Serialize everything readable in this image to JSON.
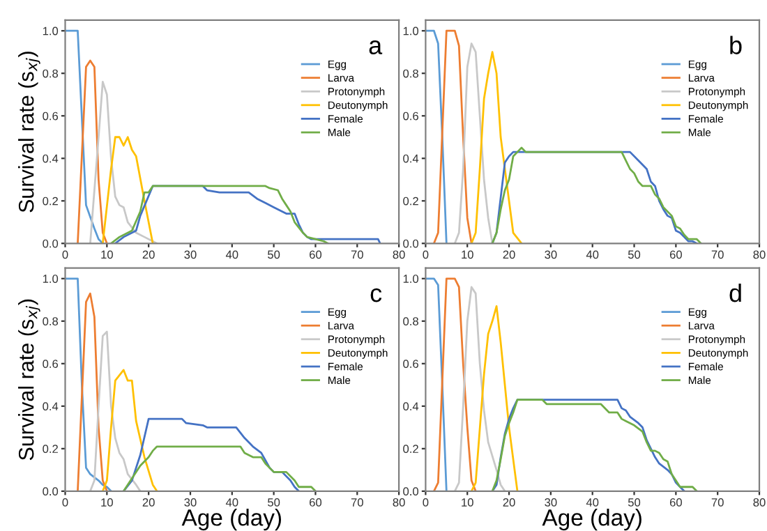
{
  "chart_data": [
    {
      "type": "line",
      "annotations": [
        "a"
      ],
      "ylabel": "Survival rate (s$_{xj}$)",
      "legend": "top right",
      "xlim": [
        0,
        80
      ],
      "ylim": [
        0,
        1.05
      ],
      "xticks": [
        0,
        10,
        20,
        30,
        40,
        50,
        60,
        70,
        80
      ],
      "yticks": [
        {
          "value": 0,
          "label": "0.0"
        },
        {
          "value": 0.2,
          "label": "0.2"
        },
        {
          "value": 0.4,
          "label": "0.4"
        },
        {
          "value": 0.6,
          "label": "0.6"
        },
        {
          "value": 0.8,
          "label": "0.8"
        },
        {
          "value": 1,
          "label": "1.0"
        }
      ],
      "series": [
        {
          "name": "Egg",
          "color": "#5b9bd5",
          "x": [
            0,
            3,
            5,
            7,
            8,
            9
          ],
          "values": [
            1,
            1,
            0.18,
            0.07,
            0.02,
            0
          ]
        },
        {
          "name": "Larva",
          "color": "#ed7d31",
          "x": [
            3,
            5,
            6,
            7,
            8,
            9,
            10
          ],
          "values": [
            0,
            0.83,
            0.86,
            0.83,
            0.3,
            0.05,
            0
          ]
        },
        {
          "name": "Protonymph",
          "color": "#c8c8c8",
          "x": [
            6,
            8,
            9,
            10,
            11,
            12,
            13,
            14,
            15,
            17,
            19,
            21,
            22
          ],
          "values": [
            0,
            0.5,
            0.76,
            0.7,
            0.4,
            0.22,
            0.18,
            0.17,
            0.1,
            0.05,
            0.03,
            0.01,
            0
          ]
        },
        {
          "name": "Deutonymph",
          "color": "#ffc000",
          "x": [
            9,
            11,
            12,
            13,
            14,
            15,
            16,
            17,
            19,
            20,
            21
          ],
          "values": [
            0,
            0.35,
            0.5,
            0.5,
            0.46,
            0.5,
            0.44,
            0.41,
            0.2,
            0.1,
            0
          ]
        },
        {
          "name": "Female",
          "color": "#4472c4",
          "x": [
            12,
            14,
            16,
            17,
            18,
            21,
            33,
            34,
            37,
            44,
            46,
            48,
            50,
            52,
            53,
            55,
            56,
            57,
            58,
            59,
            75,
            75.5
          ],
          "values": [
            0,
            0.03,
            0.05,
            0.06,
            0.13,
            0.27,
            0.27,
            0.25,
            0.24,
            0.24,
            0.21,
            0.19,
            0.17,
            0.15,
            0.14,
            0.14,
            0.09,
            0.05,
            0.03,
            0.02,
            0.02,
            0
          ]
        },
        {
          "name": "Male",
          "color": "#70ad47",
          "x": [
            11,
            13,
            16,
            18,
            19,
            20,
            21,
            48,
            49,
            51,
            52,
            53,
            54,
            55,
            57,
            58,
            60,
            62,
            63
          ],
          "values": [
            0,
            0.03,
            0.06,
            0.15,
            0.24,
            0.24,
            0.27,
            0.27,
            0.26,
            0.25,
            0.21,
            0.18,
            0.15,
            0.1,
            0.05,
            0.03,
            0.02,
            0.01,
            0
          ]
        }
      ]
    },
    {
      "type": "line",
      "annotations": [
        "b"
      ],
      "legend": "top right",
      "xlim": [
        0,
        80
      ],
      "ylim": [
        0,
        1.05
      ],
      "xticks": [
        0,
        10,
        20,
        30,
        40,
        50,
        60,
        70,
        80
      ],
      "yticks": [
        {
          "value": 0,
          "label": "0.0"
        },
        {
          "value": 0.2,
          "label": "0.2"
        },
        {
          "value": 0.4,
          "label": "0.4"
        },
        {
          "value": 0.6,
          "label": "0.6"
        },
        {
          "value": 0.8,
          "label": "0.8"
        },
        {
          "value": 1,
          "label": "1.0"
        }
      ],
      "series": [
        {
          "name": "Egg",
          "color": "#5b9bd5",
          "x": [
            0,
            2,
            3,
            4,
            5
          ],
          "values": [
            1,
            1,
            0.94,
            0.5,
            0
          ]
        },
        {
          "name": "Larva",
          "color": "#ed7d31",
          "x": [
            2,
            3,
            5,
            7,
            8,
            9,
            10,
            11
          ],
          "values": [
            0,
            0.05,
            1,
            1,
            0.93,
            0.5,
            0.12,
            0
          ]
        },
        {
          "name": "Protonymph",
          "color": "#c8c8c8",
          "x": [
            7,
            8,
            9,
            10,
            11,
            12,
            13,
            14,
            15,
            16
          ],
          "values": [
            0,
            0.05,
            0.35,
            0.83,
            0.94,
            0.9,
            0.6,
            0.3,
            0.12,
            0
          ]
        },
        {
          "name": "Deutonymph",
          "color": "#ffc000",
          "x": [
            11,
            12,
            13,
            14,
            15,
            16,
            17,
            18,
            20,
            21,
            23
          ],
          "values": [
            0,
            0.05,
            0.35,
            0.68,
            0.8,
            0.9,
            0.8,
            0.5,
            0.2,
            0.05,
            0
          ]
        },
        {
          "name": "Female",
          "color": "#4472c4",
          "x": [
            16,
            17,
            19,
            20,
            21,
            49,
            51,
            53,
            54,
            55,
            56,
            57,
            58,
            59,
            60,
            61,
            62,
            63,
            64,
            65
          ],
          "values": [
            0,
            0.05,
            0.38,
            0.41,
            0.43,
            0.43,
            0.39,
            0.35,
            0.29,
            0.27,
            0.2,
            0.16,
            0.13,
            0.12,
            0.06,
            0.05,
            0.03,
            0.01,
            0.01,
            0
          ]
        },
        {
          "name": "Male",
          "color": "#70ad47",
          "x": [
            16,
            17,
            18,
            19,
            20,
            21,
            22,
            23,
            24,
            47,
            48,
            49,
            50,
            51,
            52,
            54,
            55,
            56,
            57,
            59,
            60,
            61,
            62,
            63,
            65,
            66
          ],
          "values": [
            0,
            0.05,
            0.16,
            0.25,
            0.3,
            0.41,
            0.43,
            0.45,
            0.43,
            0.43,
            0.39,
            0.35,
            0.33,
            0.29,
            0.27,
            0.27,
            0.23,
            0.21,
            0.17,
            0.13,
            0.08,
            0.07,
            0.04,
            0.02,
            0.02,
            0
          ]
        }
      ]
    },
    {
      "type": "line",
      "annotations": [
        "c"
      ],
      "ylabel": "Survival rate (s$_{xj}$)",
      "xlabel": "Age (day)",
      "legend": "top right",
      "xlim": [
        0,
        80
      ],
      "ylim": [
        0,
        1.05
      ],
      "xticks": [
        0,
        10,
        20,
        30,
        40,
        50,
        60,
        70,
        80
      ],
      "yticks": [
        {
          "value": 0,
          "label": "0.0"
        },
        {
          "value": 0.2,
          "label": "0.2"
        },
        {
          "value": 0.4,
          "label": "0.4"
        },
        {
          "value": 0.6,
          "label": "0.6"
        },
        {
          "value": 0.8,
          "label": "0.8"
        },
        {
          "value": 1,
          "label": "1.0"
        }
      ],
      "series": [
        {
          "name": "Egg",
          "color": "#5b9bd5",
          "x": [
            0,
            3,
            4,
            5,
            6,
            8,
            9,
            10,
            11
          ],
          "values": [
            1,
            1,
            0.5,
            0.11,
            0.08,
            0.05,
            0.03,
            0.02,
            0
          ]
        },
        {
          "name": "Larva",
          "color": "#ed7d31",
          "x": [
            3,
            5,
            6,
            7,
            8,
            9,
            10
          ],
          "values": [
            0,
            0.89,
            0.93,
            0.82,
            0.3,
            0.05,
            0
          ]
        },
        {
          "name": "Protonymph",
          "color": "#c8c8c8",
          "x": [
            6,
            7,
            8,
            9,
            10,
            11,
            12,
            13,
            14,
            15,
            17,
            18
          ],
          "values": [
            0,
            0.05,
            0.4,
            0.73,
            0.75,
            0.4,
            0.25,
            0.18,
            0.15,
            0.08,
            0.03,
            0
          ]
        },
        {
          "name": "Deutonymph",
          "color": "#ffc000",
          "x": [
            9,
            10,
            11,
            12,
            14,
            15,
            16,
            17,
            19,
            21,
            22
          ],
          "values": [
            0,
            0.05,
            0.3,
            0.52,
            0.57,
            0.52,
            0.52,
            0.33,
            0.16,
            0.03,
            0
          ]
        },
        {
          "name": "Female",
          "color": "#4472c4",
          "x": [
            14,
            16,
            18,
            20,
            28,
            29,
            33,
            34,
            41,
            43,
            45,
            47,
            49,
            50,
            52,
            54,
            55,
            56
          ],
          "values": [
            0,
            0.05,
            0.17,
            0.34,
            0.34,
            0.32,
            0.31,
            0.3,
            0.3,
            0.25,
            0.21,
            0.18,
            0.11,
            0.09,
            0.09,
            0.05,
            0.02,
            0
          ]
        },
        {
          "name": "Male",
          "color": "#70ad47",
          "x": [
            14,
            16,
            18,
            20,
            21,
            22,
            42,
            43,
            45,
            47,
            48,
            50,
            53,
            55,
            56,
            59,
            60
          ],
          "values": [
            0,
            0.06,
            0.12,
            0.16,
            0.19,
            0.21,
            0.21,
            0.18,
            0.16,
            0.16,
            0.13,
            0.09,
            0.09,
            0.05,
            0.02,
            0.02,
            0
          ]
        }
      ]
    },
    {
      "type": "line",
      "annotations": [
        "d"
      ],
      "xlabel": "Age (day)",
      "legend": "top right",
      "xlim": [
        0,
        80
      ],
      "ylim": [
        0,
        1.05
      ],
      "xticks": [
        0,
        10,
        20,
        30,
        40,
        50,
        60,
        70,
        80
      ],
      "yticks": [
        {
          "value": 0,
          "label": "0.0"
        },
        {
          "value": 0.2,
          "label": "0.2"
        },
        {
          "value": 0.4,
          "label": "0.4"
        },
        {
          "value": 0.6,
          "label": "0.6"
        },
        {
          "value": 0.8,
          "label": "0.8"
        },
        {
          "value": 1,
          "label": "1.0"
        }
      ],
      "series": [
        {
          "name": "Egg",
          "color": "#5b9bd5",
          "x": [
            0,
            2,
            3,
            4,
            5
          ],
          "values": [
            1,
            1,
            0.97,
            0.5,
            0
          ]
        },
        {
          "name": "Larva",
          "color": "#ed7d31",
          "x": [
            2,
            3,
            5,
            7,
            8,
            9,
            10,
            11,
            12
          ],
          "values": [
            0,
            0.04,
            1,
            1,
            0.96,
            0.6,
            0.3,
            0.05,
            0
          ]
        },
        {
          "name": "Protonymph",
          "color": "#c8c8c8",
          "x": [
            7,
            8,
            9,
            10,
            11,
            12,
            13,
            14,
            15,
            17,
            18,
            19
          ],
          "values": [
            0,
            0.04,
            0.4,
            0.8,
            0.96,
            0.93,
            0.6,
            0.38,
            0.23,
            0.1,
            0.03,
            0
          ]
        },
        {
          "name": "Deutonymph",
          "color": "#ffc000",
          "x": [
            11,
            12,
            14,
            15,
            16,
            17,
            18,
            20,
            22
          ],
          "values": [
            0,
            0.04,
            0.55,
            0.74,
            0.8,
            0.87,
            0.7,
            0.3,
            0
          ]
        },
        {
          "name": "Female",
          "color": "#4472c4",
          "x": [
            16,
            17,
            18,
            19,
            20,
            21,
            22,
            46,
            47,
            48,
            49,
            51,
            52,
            53,
            54,
            55,
            56,
            58,
            59,
            60,
            61,
            62
          ],
          "values": [
            0,
            0.03,
            0.16,
            0.27,
            0.34,
            0.39,
            0.43,
            0.43,
            0.39,
            0.38,
            0.35,
            0.32,
            0.3,
            0.24,
            0.2,
            0.16,
            0.13,
            0.1,
            0.08,
            0.04,
            0.02,
            0
          ]
        },
        {
          "name": "Male",
          "color": "#70ad47",
          "x": [
            16,
            17,
            18,
            19,
            20,
            21,
            22,
            28,
            29,
            42,
            44,
            46,
            47,
            48,
            50,
            52,
            53,
            54,
            55,
            56,
            57,
            58,
            59,
            60,
            61,
            62,
            64,
            65
          ],
          "values": [
            0,
            0.05,
            0.15,
            0.26,
            0.32,
            0.37,
            0.43,
            0.43,
            0.41,
            0.41,
            0.37,
            0.37,
            0.34,
            0.33,
            0.31,
            0.28,
            0.23,
            0.19,
            0.19,
            0.18,
            0.15,
            0.14,
            0.08,
            0.05,
            0.02,
            0.02,
            0.02,
            0
          ]
        }
      ]
    }
  ]
}
